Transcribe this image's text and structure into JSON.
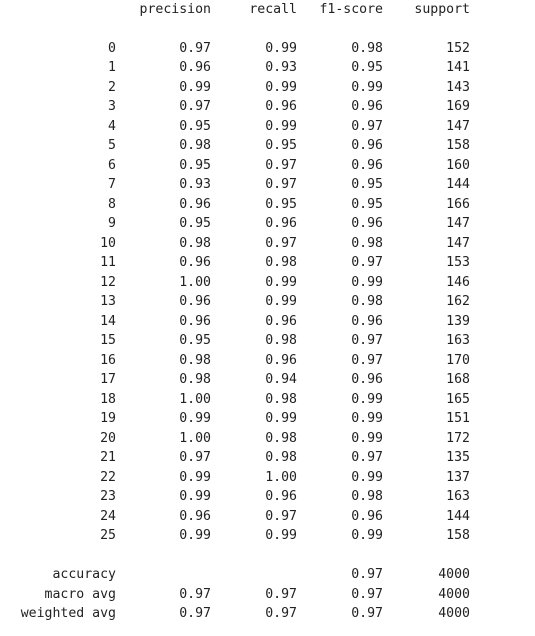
{
  "report": {
    "headers": [
      "precision",
      "recall",
      "f1-score",
      "support"
    ],
    "class_rows": [
      {
        "label": "0",
        "precision": "0.97",
        "recall": "0.99",
        "f1": "0.98",
        "support": "152"
      },
      {
        "label": "1",
        "precision": "0.96",
        "recall": "0.93",
        "f1": "0.95",
        "support": "141"
      },
      {
        "label": "2",
        "precision": "0.99",
        "recall": "0.99",
        "f1": "0.99",
        "support": "143"
      },
      {
        "label": "3",
        "precision": "0.97",
        "recall": "0.96",
        "f1": "0.96",
        "support": "169"
      },
      {
        "label": "4",
        "precision": "0.95",
        "recall": "0.99",
        "f1": "0.97",
        "support": "147"
      },
      {
        "label": "5",
        "precision": "0.98",
        "recall": "0.95",
        "f1": "0.96",
        "support": "158"
      },
      {
        "label": "6",
        "precision": "0.95",
        "recall": "0.97",
        "f1": "0.96",
        "support": "160"
      },
      {
        "label": "7",
        "precision": "0.93",
        "recall": "0.97",
        "f1": "0.95",
        "support": "144"
      },
      {
        "label": "8",
        "precision": "0.96",
        "recall": "0.95",
        "f1": "0.95",
        "support": "166"
      },
      {
        "label": "9",
        "precision": "0.95",
        "recall": "0.96",
        "f1": "0.96",
        "support": "147"
      },
      {
        "label": "10",
        "precision": "0.98",
        "recall": "0.97",
        "f1": "0.98",
        "support": "147"
      },
      {
        "label": "11",
        "precision": "0.96",
        "recall": "0.98",
        "f1": "0.97",
        "support": "153"
      },
      {
        "label": "12",
        "precision": "1.00",
        "recall": "0.99",
        "f1": "0.99",
        "support": "146"
      },
      {
        "label": "13",
        "precision": "0.96",
        "recall": "0.99",
        "f1": "0.98",
        "support": "162"
      },
      {
        "label": "14",
        "precision": "0.96",
        "recall": "0.96",
        "f1": "0.96",
        "support": "139"
      },
      {
        "label": "15",
        "precision": "0.95",
        "recall": "0.98",
        "f1": "0.97",
        "support": "163"
      },
      {
        "label": "16",
        "precision": "0.98",
        "recall": "0.96",
        "f1": "0.97",
        "support": "170"
      },
      {
        "label": "17",
        "precision": "0.98",
        "recall": "0.94",
        "f1": "0.96",
        "support": "168"
      },
      {
        "label": "18",
        "precision": "1.00",
        "recall": "0.98",
        "f1": "0.99",
        "support": "165"
      },
      {
        "label": "19",
        "precision": "0.99",
        "recall": "0.99",
        "f1": "0.99",
        "support": "151"
      },
      {
        "label": "20",
        "precision": "1.00",
        "recall": "0.98",
        "f1": "0.99",
        "support": "172"
      },
      {
        "label": "21",
        "precision": "0.97",
        "recall": "0.98",
        "f1": "0.97",
        "support": "135"
      },
      {
        "label": "22",
        "precision": "0.99",
        "recall": "1.00",
        "f1": "0.99",
        "support": "137"
      },
      {
        "label": "23",
        "precision": "0.99",
        "recall": "0.96",
        "f1": "0.98",
        "support": "163"
      },
      {
        "label": "24",
        "precision": "0.96",
        "recall": "0.97",
        "f1": "0.96",
        "support": "144"
      },
      {
        "label": "25",
        "precision": "0.99",
        "recall": "0.99",
        "f1": "0.99",
        "support": "158"
      }
    ],
    "summary_rows": [
      {
        "label": "accuracy",
        "precision": "",
        "recall": "",
        "f1": "0.97",
        "support": "4000"
      },
      {
        "label": "macro avg",
        "precision": "0.97",
        "recall": "0.97",
        "f1": "0.97",
        "support": "4000"
      },
      {
        "label": "weighted avg",
        "precision": "0.97",
        "recall": "0.97",
        "f1": "0.97",
        "support": "4000"
      }
    ]
  }
}
